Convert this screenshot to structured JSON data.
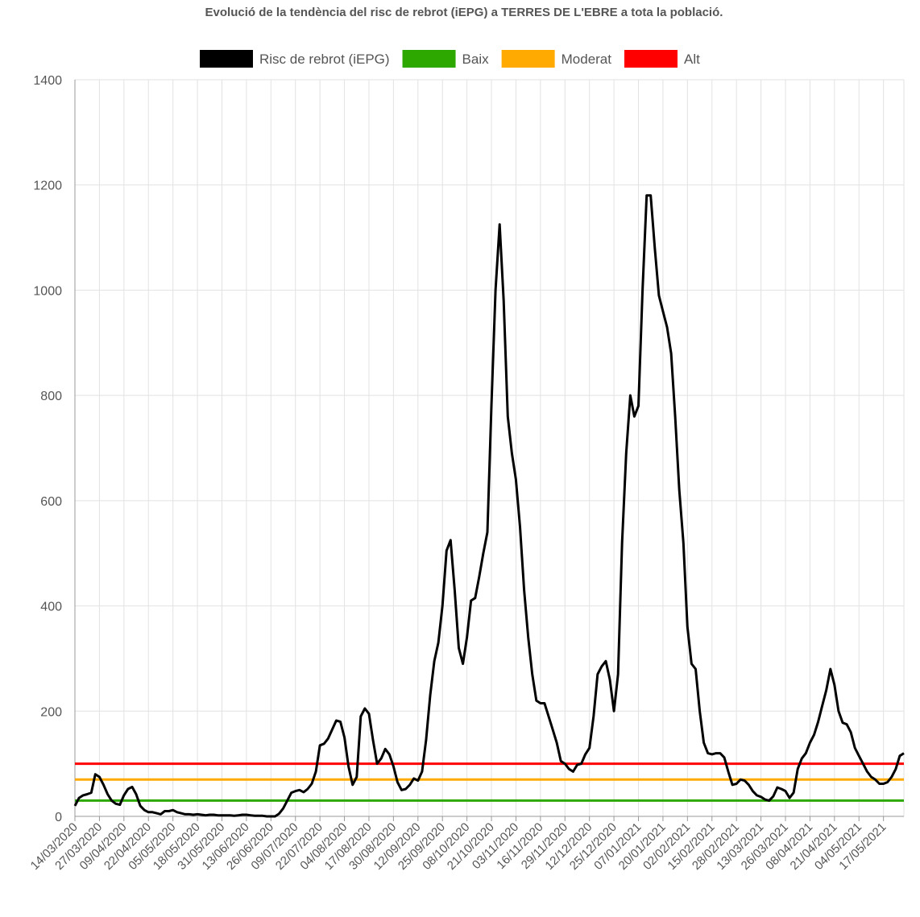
{
  "chart_data": {
    "type": "line",
    "title": "Evolució de la tendència del risc de rebrot (iEPG) a TERRES DE L'EBRE a tota la població.",
    "categories": [
      "14/03/2020",
      null,
      null,
      null,
      null,
      null,
      "27/03/2020",
      null,
      null,
      null,
      null,
      null,
      "09/04/2020",
      null,
      null,
      null,
      null,
      null,
      "22/04/2020",
      null,
      null,
      null,
      null,
      null,
      "05/05/2020",
      null,
      null,
      null,
      null,
      null,
      "18/05/2020",
      null,
      null,
      null,
      null,
      null,
      "31/05/2020",
      null,
      null,
      null,
      null,
      null,
      "13/06/2020",
      null,
      null,
      null,
      null,
      null,
      "26/06/2020",
      null,
      null,
      null,
      null,
      null,
      "09/07/2020",
      null,
      null,
      null,
      null,
      null,
      "22/07/2020",
      null,
      null,
      null,
      null,
      null,
      "04/08/2020",
      null,
      null,
      null,
      null,
      null,
      "17/08/2020",
      null,
      null,
      null,
      null,
      null,
      "30/08/2020",
      null,
      null,
      null,
      null,
      null,
      "12/09/2020",
      null,
      null,
      null,
      null,
      null,
      "25/09/2020",
      null,
      null,
      null,
      null,
      null,
      "08/10/2020",
      null,
      null,
      null,
      null,
      null,
      "21/10/2020",
      null,
      null,
      null,
      null,
      null,
      "03/11/2020",
      null,
      null,
      null,
      null,
      null,
      "16/11/2020",
      null,
      null,
      null,
      null,
      null,
      "29/11/2020",
      null,
      null,
      null,
      null,
      null,
      "12/12/2020",
      null,
      null,
      null,
      null,
      null,
      "25/12/2020",
      null,
      null,
      null,
      null,
      null,
      "07/01/2021",
      null,
      null,
      null,
      null,
      null,
      "20/01/2021",
      null,
      null,
      null,
      null,
      null,
      "02/02/2021",
      null,
      null,
      null,
      null,
      null,
      "15/02/2021",
      null,
      null,
      null,
      null,
      null,
      "28/02/2021",
      null,
      null,
      null,
      null,
      null,
      "13/03/2021",
      null,
      null,
      null,
      null,
      null,
      "26/03/2021",
      null,
      null,
      null,
      null,
      null,
      "08/04/2021",
      null,
      null,
      null,
      null,
      null,
      "21/04/2021",
      null,
      null,
      null,
      null,
      null,
      "04/05/2021",
      null,
      null,
      null,
      null,
      null,
      "17/05/2021",
      null,
      null,
      null,
      null,
      null
    ],
    "series": [
      {
        "name": "Risc de rebrot (iEPG)",
        "color": "#000000",
        "values": [
          20,
          35,
          40,
          42,
          45,
          80,
          75,
          60,
          42,
          30,
          24,
          22,
          40,
          52,
          56,
          42,
          20,
          12,
          8,
          8,
          6,
          4,
          10,
          10,
          12,
          8,
          6,
          4,
          4,
          3,
          4,
          3,
          2,
          3,
          3,
          2,
          2,
          2,
          2,
          1,
          2,
          3,
          3,
          2,
          1,
          1,
          1,
          0,
          0,
          0,
          5,
          15,
          30,
          45,
          48,
          50,
          46,
          52,
          62,
          85,
          135,
          138,
          148,
          165,
          182,
          180,
          150,
          95,
          60,
          75,
          190,
          205,
          195,
          145,
          100,
          110,
          128,
          118,
          95,
          65,
          50,
          52,
          60,
          72,
          68,
          85,
          145,
          230,
          295,
          330,
          400,
          505,
          525,
          430,
          320,
          290,
          340,
          410,
          415,
          455,
          500,
          540,
          780,
          1000,
          1125,
          980,
          760,
          690,
          640,
          550,
          430,
          340,
          270,
          220,
          215,
          215,
          190,
          165,
          140,
          105,
          100,
          90,
          85,
          98,
          100,
          118,
          130,
          190,
          270,
          285,
          295,
          260,
          200,
          270,
          520,
          690,
          800,
          760,
          780,
          1000,
          1180,
          1180,
          1080,
          990,
          960,
          930,
          880,
          760,
          620,
          520,
          360,
          290,
          280,
          200,
          140,
          120,
          118,
          120,
          120,
          112,
          85,
          60,
          62,
          70,
          68,
          60,
          48,
          40,
          37,
          32,
          30,
          38,
          55,
          52,
          48,
          35,
          45,
          90,
          110,
          120,
          140,
          155,
          180,
          210,
          240,
          280,
          250,
          200,
          178,
          175,
          160,
          130,
          115,
          100,
          85,
          75,
          70,
          62,
          62,
          65,
          75,
          90,
          115,
          120
        ]
      },
      {
        "name": "Baix",
        "color": "#2ca800",
        "value": 30
      },
      {
        "name": "Moderat",
        "color": "#ffaa00",
        "value": 70
      },
      {
        "name": "Alt",
        "color": "#ff0000",
        "value": 100
      }
    ],
    "ylim": [
      0,
      1400
    ],
    "yticks": [
      0,
      200,
      400,
      600,
      800,
      1000,
      1200,
      1400
    ],
    "grid": true
  }
}
